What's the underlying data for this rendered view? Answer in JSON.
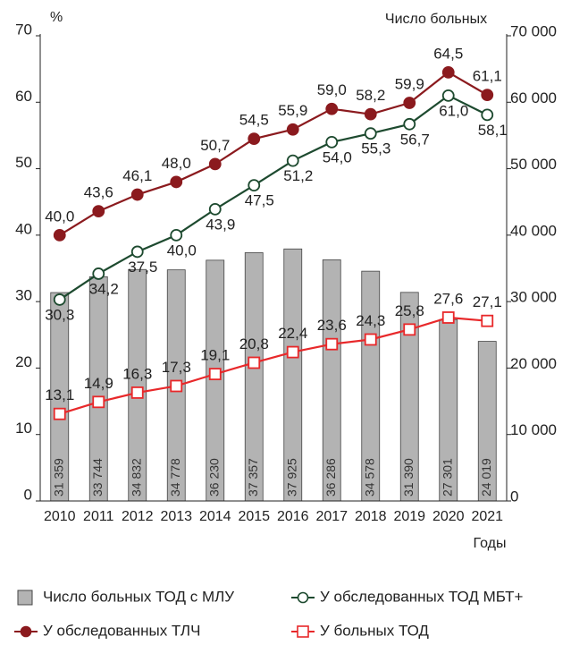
{
  "chart_data": {
    "type": "combo",
    "y_label": "%",
    "y2_label": "Число больных",
    "x_label": "Годы",
    "categories": [
      "2010",
      "2011",
      "2012",
      "2013",
      "2014",
      "2015",
      "2016",
      "2017",
      "2018",
      "2019",
      "2020",
      "2021"
    ],
    "ylim": [
      0,
      70
    ],
    "yticks": [
      0,
      10,
      20,
      30,
      40,
      50,
      60,
      70
    ],
    "y2lim": [
      0,
      70000
    ],
    "y2ticks": [
      0,
      {
        "value": 10000,
        "label": "10 000"
      },
      {
        "value": 20000,
        "label": "20 000"
      },
      {
        "value": 30000,
        "label": "30 000"
      },
      {
        "value": 40000,
        "label": "40 000"
      },
      {
        "value": 50000,
        "label": "50 000"
      },
      {
        "value": 60000,
        "label": "60 000"
      },
      {
        "value": 70000,
        "label": "70 000"
      }
    ],
    "series": [
      {
        "name": "Число больных ТОД с МЛУ",
        "type": "bar",
        "axis": "y2",
        "color": "#b3b3b3",
        "values": [
          31359,
          33744,
          34832,
          34778,
          36230,
          37357,
          37925,
          36286,
          34578,
          31390,
          27301,
          24019
        ],
        "value_labels": [
          "31 359",
          "33 744",
          "34 832",
          "34 778",
          "36 230",
          "37 357",
          "37 925",
          "36 286",
          "34 578",
          "31 390",
          "27 301",
          "24 019"
        ]
      },
      {
        "name": "У обследованных ТОД МБТ+",
        "type": "line",
        "marker": "circle-open",
        "color": "#1d4a2f",
        "values": [
          30.3,
          34.2,
          37.5,
          40.0,
          43.9,
          47.5,
          51.2,
          54.0,
          55.3,
          56.7,
          61.0,
          58.1
        ],
        "value_labels": [
          "30,3",
          "34,2",
          "37,5",
          "40,0",
          "43,9",
          "47,5",
          "51,2",
          "54,0",
          "55,3",
          "56,7",
          "61,0",
          "58,1"
        ]
      },
      {
        "name": "У обследованных ТЛЧ",
        "type": "line",
        "marker": "circle",
        "color": "#8b1a1e",
        "values": [
          40.0,
          43.6,
          46.1,
          48.0,
          50.7,
          54.5,
          55.9,
          59.0,
          58.2,
          59.9,
          64.5,
          61.1
        ],
        "value_labels": [
          "40,0",
          "43,6",
          "46,1",
          "48,0",
          "50,7",
          "54,5",
          "55,9",
          "59,0",
          "58,2",
          "59,9",
          "64,5",
          "61,1"
        ]
      },
      {
        "name": "У больных ТОД",
        "type": "line",
        "marker": "square-open",
        "color": "#e8282a",
        "values": [
          13.1,
          14.9,
          16.3,
          17.3,
          19.1,
          20.8,
          22.4,
          23.6,
          24.3,
          25.8,
          27.6,
          27.1
        ],
        "value_labels": [
          "13,1",
          "14,9",
          "16,3",
          "17,3",
          "19,1",
          "20,8",
          "22,4",
          "23,6",
          "24,3",
          "25,8",
          "27,6",
          "27,1"
        ]
      }
    ]
  }
}
